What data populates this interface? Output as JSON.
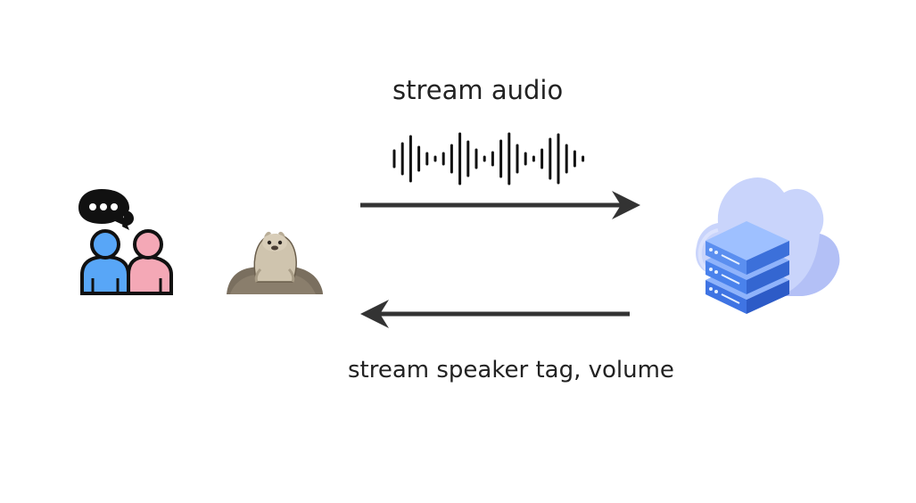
{
  "diagram": {
    "top_label": "stream audio",
    "bottom_label": "stream speaker tag, volume",
    "icons": {
      "speakers": "two-people-talking-icon",
      "device": "seal-mascot-icon",
      "server": "cloud-server-icon",
      "waveform": "audio-waveform-icon"
    },
    "colors": {
      "arrow": "#333333",
      "person_blue": "#58a6f7",
      "person_pink": "#f4a8b6",
      "cloud": "#c9d4fb",
      "server": "#5b8ff0"
    }
  }
}
